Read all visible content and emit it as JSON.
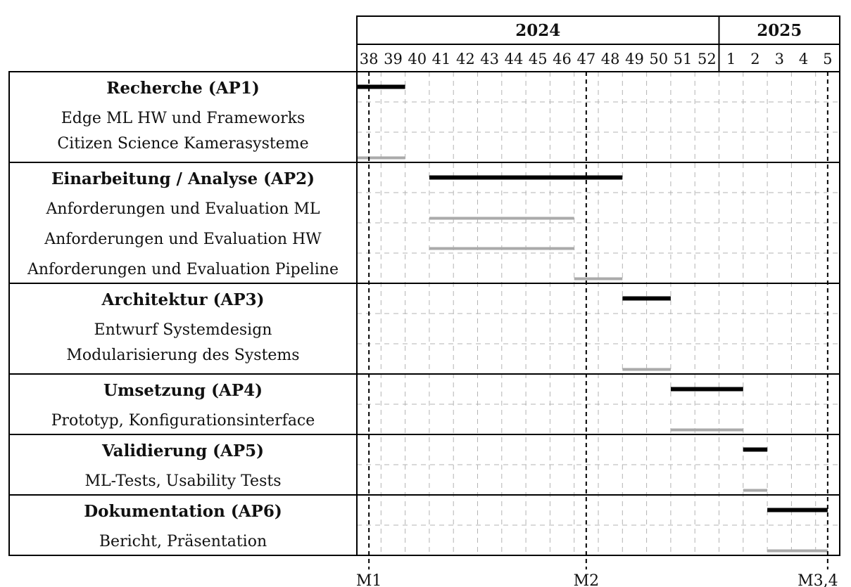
{
  "chart_data": {
    "type": "gantt",
    "years": [
      {
        "label": "2024",
        "weeks": 15
      },
      {
        "label": "2025",
        "weeks": 5
      }
    ],
    "weeks": [
      "38",
      "39",
      "40",
      "41",
      "42",
      "43",
      "44",
      "45",
      "46",
      "47",
      "48",
      "49",
      "50",
      "51",
      "52",
      "1",
      "2",
      "3",
      "4",
      "5"
    ],
    "groups": [
      {
        "title": "Recherche (AP1)",
        "bar": [
          0,
          2
        ],
        "tasks": [
          {
            "label": "Edge ML HW und Frameworks",
            "bar": null
          },
          {
            "label": "Citizen Science Kamerasysteme",
            "bar": [
              0,
              2
            ]
          }
        ]
      },
      {
        "title": "Einarbeitung / Analyse (AP2)",
        "bar": [
          3,
          11
        ],
        "tasks": [
          {
            "label": "Anforderungen und Evaluation ML",
            "bar": [
              3,
              9
            ]
          },
          {
            "label": "Anforderungen und Evaluation HW",
            "bar": [
              3,
              9
            ]
          },
          {
            "label": "Anforderungen und Evaluation Pipeline",
            "bar": [
              9,
              11
            ]
          }
        ]
      },
      {
        "title": "Architektur (AP3)",
        "bar": [
          11,
          13
        ],
        "tasks": [
          {
            "label": "Entwurf Systemdesign",
            "bar": null
          },
          {
            "label": "Modularisierung des Systems",
            "bar": [
              11,
              13
            ]
          }
        ]
      },
      {
        "title": "Umsetzung (AP4)",
        "bar": [
          13,
          16
        ],
        "tasks": [
          {
            "label": "Prototyp, Konfigurationsinterface",
            "bar": [
              13,
              16
            ]
          }
        ]
      },
      {
        "title": "Validierung (AP5)",
        "bar": [
          16,
          17
        ],
        "tasks": [
          {
            "label": "ML-Tests, Usability Tests",
            "bar": [
              16,
              17
            ]
          }
        ]
      },
      {
        "title": "Dokumentation (AP6)",
        "bar": [
          17,
          19.5
        ],
        "tasks": [
          {
            "label": "Bericht, Präsentation",
            "bar": [
              17,
              19.5
            ]
          }
        ]
      }
    ],
    "milestones": [
      {
        "label": "M1",
        "week_index": 0.5
      },
      {
        "label": "M2",
        "week_index": 9.5
      },
      {
        "label": "M3,4",
        "week_index": 19.5
      }
    ],
    "colors": {
      "group_bar": "#000000",
      "task_bar": "#aaaaaa",
      "grid": "#b3b3b3",
      "frame": "#000000"
    }
  }
}
